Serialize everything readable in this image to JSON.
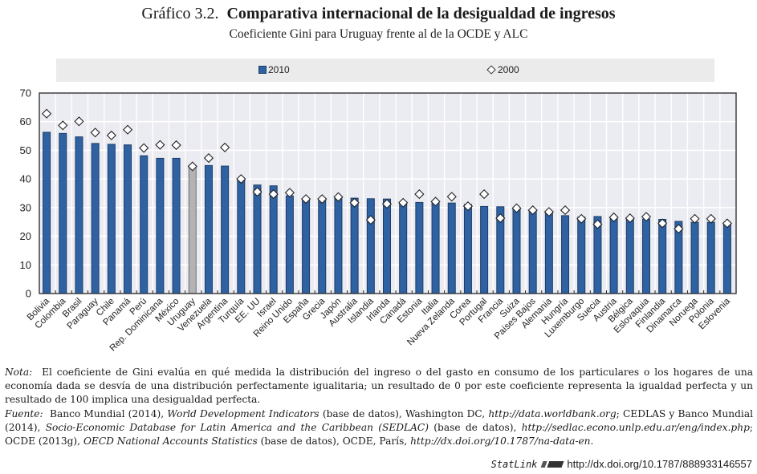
{
  "header": {
    "title_lead": "Gráfico 3.2.",
    "title_main": "Comparativa internacional de la desigualdad de ingresos",
    "subtitle": "Coeficiente Gini para Uruguay frente al de la OCDE y ALC"
  },
  "legend": {
    "bar_label": "2010",
    "diamond_label": "2000"
  },
  "colors": {
    "bar": "#2f62a2",
    "bar_outline": "#1e3c64",
    "highlight_bar": "#b3b3b3",
    "plot_bg": "#ebebf2",
    "legend_bg": "#ebebeb"
  },
  "chart_data": {
    "type": "bar",
    "title": "Comparativa internacional de la desigualdad de ingresos",
    "subtitle": "Coeficiente Gini para Uruguay frente al de la OCDE y ALC",
    "xlabel": "",
    "ylabel": "",
    "ylim": [
      0,
      70
    ],
    "yticks": [
      0,
      10,
      20,
      30,
      40,
      50,
      60,
      70
    ],
    "grid": true,
    "legend_position": "top",
    "highlight_category": "Uruguay",
    "categories": [
      "Bolivia",
      "Colombia",
      "Brasil",
      "Paraguay",
      "Chile",
      "Panamá",
      "Perú",
      "Rep. Dominicana",
      "México",
      "Uruguay",
      "Venezuela",
      "Argentina",
      "Turquía",
      "EE. UU",
      "Israel",
      "Reino Unido",
      "España",
      "Grecia",
      "Japón",
      "Australia",
      "Islandia",
      "Irlanda",
      "Canadá",
      "Estonia",
      "Italia",
      "Nueva Zelanda",
      "Corea",
      "Portugal",
      "Francia",
      "Suiza",
      "Países Bajos",
      "Alemania",
      "Hungría",
      "Luxemburgo",
      "Suecia",
      "Austria",
      "Bélgica",
      "Eslovaquia",
      "Finlandia",
      "Dinamarca",
      "Noruega",
      "Polonia",
      "Eslovenia"
    ],
    "series": [
      {
        "name": "2010",
        "mark": "bar",
        "values": [
          56.3,
          55.9,
          54.7,
          52.4,
          52.1,
          51.9,
          48.1,
          47.2,
          47.2,
          44.3,
          44.7,
          44.5,
          39.9,
          37.9,
          37.6,
          34.1,
          33.0,
          32.9,
          33.5,
          33.3,
          33.1,
          33.0,
          32.0,
          31.8,
          31.9,
          31.6,
          31.1,
          30.4,
          30.3,
          29.7,
          29.0,
          28.3,
          27.2,
          26.7,
          26.9,
          26.4,
          26.3,
          26.0,
          25.9,
          25.2,
          24.9,
          24.9,
          24.3
        ]
      },
      {
        "name": "2000",
        "mark": "diamond",
        "values": [
          62.8,
          58.7,
          60.1,
          56.2,
          55.2,
          57.2,
          50.8,
          51.9,
          51.8,
          44.4,
          47.3,
          51.0,
          40.0,
          35.5,
          34.7,
          35.2,
          33.0,
          33.0,
          33.7,
          31.7,
          25.7,
          31.3,
          31.7,
          34.7,
          32.1,
          33.8,
          30.5,
          34.7,
          26.3,
          29.8,
          29.1,
          28.5,
          29.1,
          26.1,
          24.2,
          26.6,
          26.3,
          26.8,
          24.5,
          22.6,
          26.1,
          26.1,
          24.5
        ]
      }
    ]
  },
  "footer": {
    "nota_label": "Nota:",
    "nota_text": "El coeficiente de Gini evalúa en qué medida la distribución del ingreso o del gasto en consumo de los particulares o los hogares de una economía dada se desvía de una distribución perfectamente igualitaria; un resultado de 0 por este coeficiente representa la igualdad perfecta y un resultado de 100 implica una desigualdad perfecta.",
    "fuente_label": "Fuente:",
    "fuente_1": "Banco Mundial (2014),",
    "fuente_1_title": "World Development Indicators",
    "fuente_2": "(base de datos), Washington DC,",
    "fuente_2_url": "http://data.worldbank.org",
    "fuente_3": "; CEDLAS y Banco Mundial (2014),",
    "fuente_3_title": "Socio-Economic Database for Latin America and the Caribbean (SEDLAC)",
    "fuente_4": "(base de datos),",
    "fuente_4_url": "http://sedlac.econo.unlp.edu.ar/eng/index.php",
    "fuente_5": "; OCDE (2013g),",
    "fuente_5_title": "OECD National Accounts Statistics",
    "fuente_6": "(base de datos), OCDE, París,",
    "fuente_6_url": "http://dx.doi.org/10.1787/na-data-en",
    "fuente_end": ".",
    "statlink_label": "StatLink",
    "statlink_url": "http://dx.doi.org/10.1787/888933146557"
  }
}
